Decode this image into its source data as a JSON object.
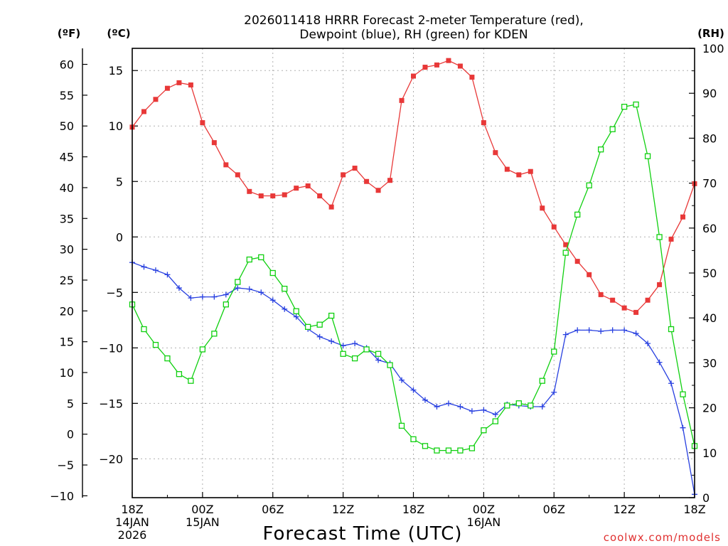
{
  "chart_data": {
    "type": "line",
    "title": "2026011418 HRRR Forecast 2-meter Temperature (red),",
    "title_line2": "Dewpoint (blue), RH (green) for KDEN",
    "xlabel": "Forecast Time (UTC)",
    "y_left_outer_label": "(ºF)",
    "y_left_inner_label": "(ºC)",
    "y_right_label": "(RH)",
    "credit": "coolwx.com/models",
    "x_range_hours": [
      0,
      48
    ],
    "ylim_celsius": [
      -23.5,
      17
    ],
    "ylim_rh": [
      0,
      100
    ],
    "celsius_ticks": [
      "15",
      "10",
      "5",
      "0",
      "−5",
      "−10",
      "−15",
      "−20"
    ],
    "celsius_tick_values": [
      15,
      10,
      5,
      0,
      -5,
      -10,
      -15,
      -20
    ],
    "fahrenheit_ticks": [
      "60",
      "55",
      "50",
      "45",
      "40",
      "35",
      "30",
      "25",
      "20",
      "15",
      "10",
      "5",
      "0",
      "−5",
      "−10"
    ],
    "fahrenheit_tick_values": [
      60,
      55,
      50,
      45,
      40,
      35,
      30,
      25,
      20,
      15,
      10,
      5,
      0,
      -5,
      -10
    ],
    "rh_ticks": [
      "100",
      "90",
      "80",
      "70",
      "60",
      "50",
      "40",
      "30",
      "20",
      "10",
      "0"
    ],
    "rh_tick_values": [
      100,
      90,
      80,
      70,
      60,
      50,
      40,
      30,
      20,
      10,
      0
    ],
    "x_ticks": [
      {
        "hour": 0,
        "line1": "18Z",
        "line2": "14JAN",
        "line3": "2026"
      },
      {
        "hour": 6,
        "line1": "00Z",
        "line2": "15JAN",
        "line3": ""
      },
      {
        "hour": 12,
        "line1": "06Z",
        "line2": "",
        "line3": ""
      },
      {
        "hour": 18,
        "line1": "12Z",
        "line2": "",
        "line3": ""
      },
      {
        "hour": 24,
        "line1": "18Z",
        "line2": "",
        "line3": ""
      },
      {
        "hour": 30,
        "line1": "00Z",
        "line2": "16JAN",
        "line3": ""
      },
      {
        "hour": 36,
        "line1": "06Z",
        "line2": "",
        "line3": ""
      },
      {
        "hour": 42,
        "line1": "12Z",
        "line2": "",
        "line3": ""
      },
      {
        "hour": 48,
        "line1": "18Z",
        "line2": "",
        "line3": ""
      }
    ],
    "colors": {
      "temperature": "#e83838",
      "dewpoint": "#2840e0",
      "rh": "#10d010",
      "grid": "#b0b0b0"
    },
    "series": [
      {
        "name": "Temperature",
        "unit": "C",
        "marker": "filled-square",
        "values": [
          9.9,
          11.3,
          12.4,
          13.4,
          13.9,
          13.7,
          10.3,
          8.5,
          6.5,
          5.6,
          4.1,
          3.7,
          3.7,
          3.8,
          4.4,
          4.6,
          3.7,
          2.7,
          5.6,
          6.2,
          5.0,
          4.2,
          5.1,
          12.3,
          14.5,
          15.3,
          15.5,
          15.9,
          15.4,
          14.4,
          10.3,
          7.6,
          6.1,
          5.6,
          5.9,
          2.6,
          0.9,
          -0.7,
          -2.2,
          -3.4,
          -5.2,
          -5.7,
          -6.4,
          -6.8,
          -5.7,
          -4.3,
          -0.2,
          1.8,
          4.8
        ]
      },
      {
        "name": "Dewpoint",
        "unit": "C",
        "marker": "plus",
        "values": [
          -2.3,
          -2.7,
          -3.0,
          -3.4,
          -4.6,
          -5.5,
          -5.4,
          -5.4,
          -5.2,
          -4.6,
          -4.7,
          -5.0,
          -5.7,
          -6.5,
          -7.2,
          -8.3,
          -9.0,
          -9.4,
          -9.8,
          -9.6,
          -10.0,
          -11.1,
          -11.4,
          -12.9,
          -13.8,
          -14.7,
          -15.3,
          -15.0,
          -15.3,
          -15.7,
          -15.6,
          -16.0,
          -15.1,
          -15.2,
          -15.3,
          -15.3,
          -14.0,
          -8.8,
          -8.4,
          -8.4,
          -8.5,
          -8.4,
          -8.4,
          -8.7,
          -9.6,
          -11.3,
          -13.2,
          -17.2,
          -23.2
        ]
      },
      {
        "name": "RH",
        "unit": "%",
        "marker": "open-square",
        "values": [
          43,
          37.5,
          34,
          31,
          27.5,
          26,
          33,
          36.5,
          43,
          48,
          53,
          53.5,
          50,
          46.5,
          41.5,
          38,
          38.5,
          40.5,
          32,
          31,
          33,
          32,
          29.5,
          16,
          13,
          11.5,
          10.5,
          10.5,
          10.5,
          11,
          15,
          17,
          20.5,
          21,
          20.5,
          26,
          32.5,
          54.5,
          63,
          69.5,
          77.5,
          82,
          87,
          87.5,
          76,
          58,
          37.5,
          23,
          11.5
        ]
      }
    ]
  }
}
